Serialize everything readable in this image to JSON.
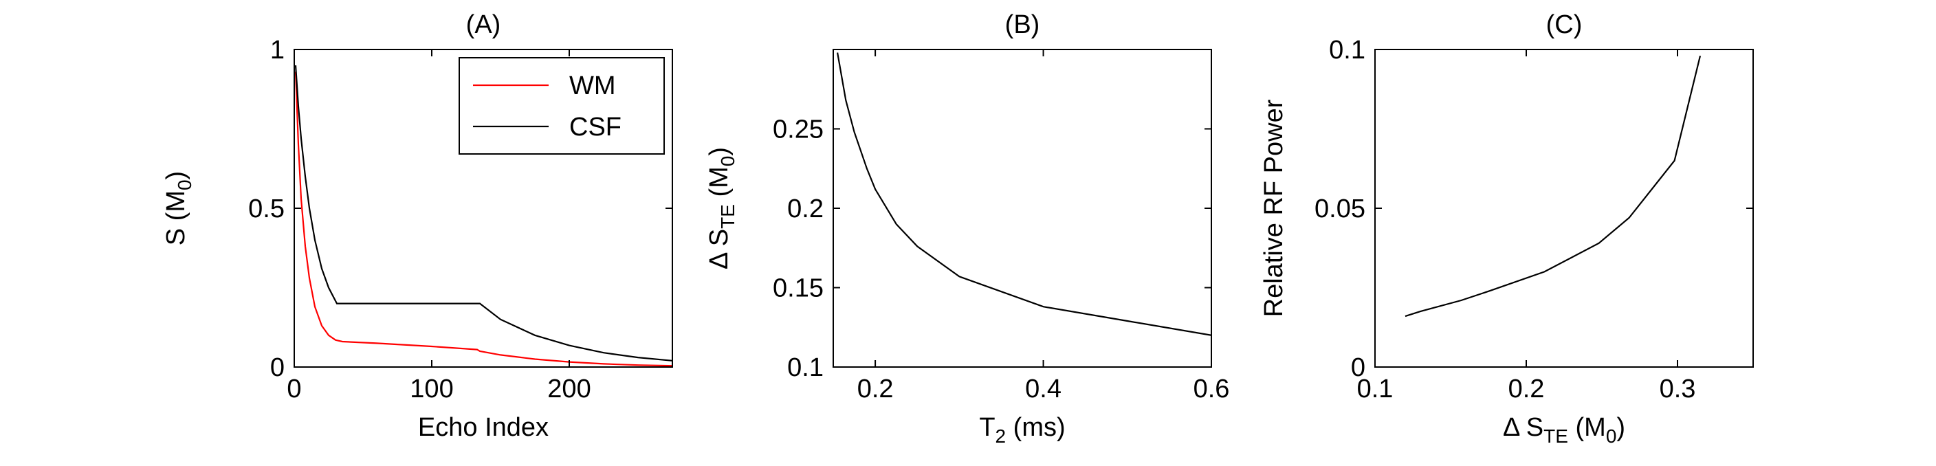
{
  "chart_data": [
    {
      "id": "A",
      "type": "line",
      "title": "(A)",
      "xlabel": "Echo Index",
      "ylabel": {
        "main": "S (M",
        "sub": "0",
        "end": ")"
      },
      "xlim": [
        0,
        275
      ],
      "ylim": [
        0,
        1
      ],
      "xticks": [
        0,
        100,
        200
      ],
      "yticks": [
        0,
        0.5,
        1
      ],
      "xtick_labels": [
        "0",
        "100",
        "200"
      ],
      "ytick_labels": [
        "0",
        "0.5",
        "1"
      ],
      "legend": {
        "position": "top-right",
        "entries": [
          "WM",
          "CSF"
        ]
      },
      "series": [
        {
          "name": "WM",
          "color": "#ff0000",
          "x": [
            1,
            3,
            5,
            8,
            11,
            15,
            20,
            25,
            30,
            35,
            60,
            100,
            133,
            135,
            150,
            175,
            200,
            225,
            250,
            275
          ],
          "y": [
            0.93,
            0.7,
            0.53,
            0.38,
            0.28,
            0.19,
            0.13,
            0.1,
            0.085,
            0.08,
            0.075,
            0.065,
            0.055,
            0.05,
            0.038,
            0.025,
            0.016,
            0.01,
            0.006,
            0.004
          ]
        },
        {
          "name": "CSF",
          "color": "#000000",
          "x": [
            1,
            3,
            5,
            8,
            11,
            15,
            20,
            25,
            31,
            60,
            100,
            135,
            150,
            175,
            200,
            225,
            250,
            275
          ],
          "y": [
            0.95,
            0.82,
            0.72,
            0.6,
            0.5,
            0.4,
            0.31,
            0.25,
            0.2,
            0.2,
            0.2,
            0.2,
            0.15,
            0.1,
            0.068,
            0.045,
            0.03,
            0.02
          ]
        }
      ]
    },
    {
      "id": "B",
      "type": "line",
      "title": "(B)",
      "xlabel": {
        "main": "T",
        "sub": "2",
        "end": " (ms)"
      },
      "ylabel": {
        "main": "Δ S",
        "sub": "TE",
        "end": " (M",
        "sub2": "0",
        "end2": ")"
      },
      "xlim": [
        0.15,
        0.6
      ],
      "ylim": [
        0.1,
        0.3
      ],
      "xticks": [
        0.2,
        0.4,
        0.6
      ],
      "yticks": [
        0.1,
        0.15,
        0.2,
        0.25
      ],
      "xtick_labels": [
        "0.2",
        "0.4",
        "0.6"
      ],
      "ytick_labels": [
        "0.1",
        "0.15",
        "0.2",
        "0.25"
      ],
      "series": [
        {
          "color": "#000000",
          "x": [
            0.155,
            0.165,
            0.175,
            0.19,
            0.2,
            0.225,
            0.25,
            0.3,
            0.4,
            0.5,
            0.6
          ],
          "y": [
            0.298,
            0.268,
            0.248,
            0.225,
            0.212,
            0.19,
            0.176,
            0.157,
            0.138,
            0.129,
            0.12
          ]
        }
      ]
    },
    {
      "id": "C",
      "type": "line",
      "title": "(C)",
      "xlabel": {
        "main": "Δ S",
        "sub": "TE",
        "end": " (M",
        "sub2": "0",
        "end2": ")"
      },
      "ylabel": "Relative RF Power",
      "xlim": [
        0.1,
        0.35
      ],
      "ylim": [
        0,
        0.1
      ],
      "xticks": [
        0.1,
        0.2,
        0.3
      ],
      "yticks": [
        0,
        0.05,
        0.1
      ],
      "xtick_labels": [
        "0.1",
        "0.2",
        "0.3"
      ],
      "ytick_labels": [
        "0",
        "0.05",
        "0.1"
      ],
      "series": [
        {
          "color": "#000000",
          "x": [
            0.12,
            0.13,
            0.157,
            0.176,
            0.212,
            0.248,
            0.268,
            0.298,
            0.315
          ],
          "y": [
            0.016,
            0.0175,
            0.021,
            0.024,
            0.03,
            0.039,
            0.047,
            0.065,
            0.098
          ]
        }
      ]
    }
  ]
}
